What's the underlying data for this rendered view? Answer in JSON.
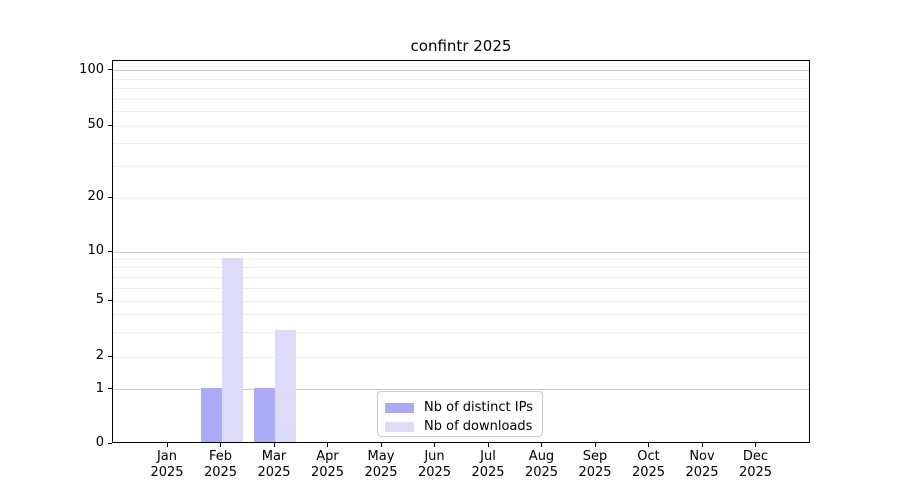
{
  "chart_data": {
    "type": "bar",
    "title": "confintr 2025",
    "categories": [
      "Jan 2025",
      "Feb 2025",
      "Mar 2025",
      "Apr 2025",
      "May 2025",
      "Jun 2025",
      "Jul 2025",
      "Aug 2025",
      "Sep 2025",
      "Oct 2025",
      "Nov 2025",
      "Dec 2025"
    ],
    "series": [
      {
        "name": "Nb of distinct IPs",
        "color": "#aaaaf7",
        "values": [
          0,
          1,
          1,
          0,
          0,
          0,
          0,
          0,
          0,
          0,
          0,
          0
        ]
      },
      {
        "name": "Nb of downloads",
        "color": "#dcdcf9",
        "values": [
          0,
          9,
          3,
          0,
          0,
          0,
          0,
          0,
          0,
          0,
          0,
          0
        ]
      }
    ],
    "xlabel": "",
    "ylabel": "",
    "y_ticks": [
      0,
      1,
      2,
      5,
      10,
      20,
      50,
      100
    ],
    "y_minor_gridlines": [
      3,
      4,
      6,
      7,
      8,
      9,
      30,
      40,
      60,
      70,
      80,
      90
    ],
    "y_scale": "log-like (linear below 1)",
    "ylim": [
      0,
      113
    ],
    "grid": true,
    "legend_position": "lower center",
    "colors": {
      "axis": "#000000",
      "grid_major": "#c9c9c9",
      "grid_minor": "#ededed",
      "background": "#ffffff"
    }
  }
}
